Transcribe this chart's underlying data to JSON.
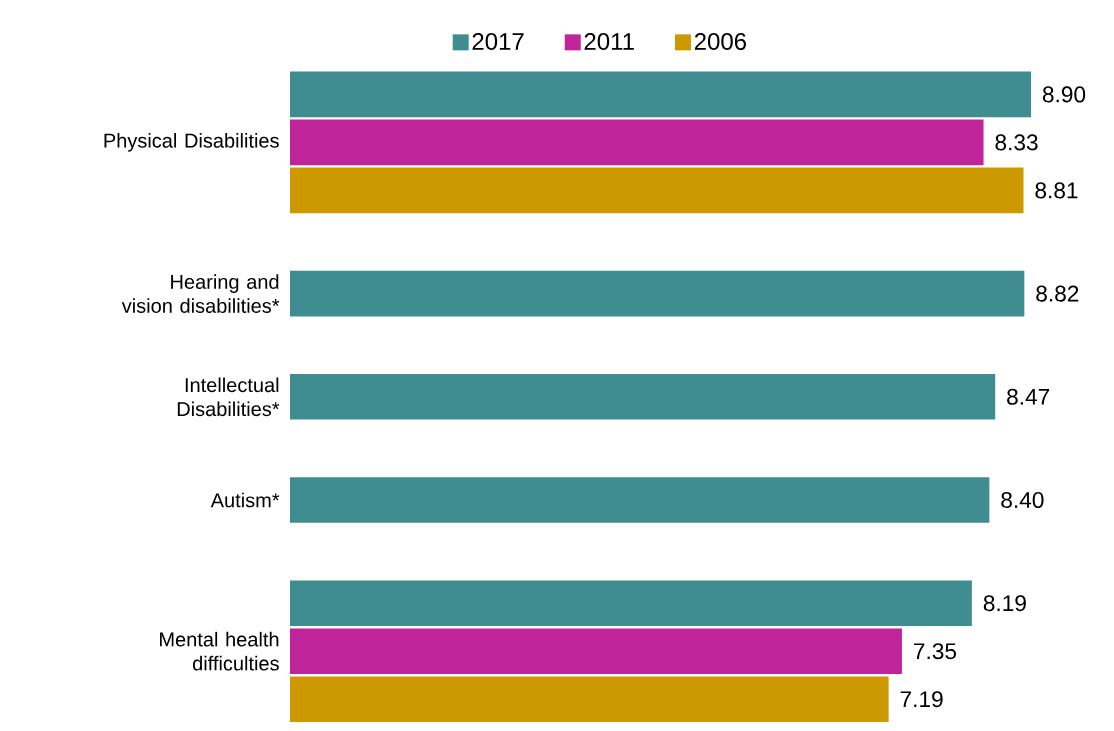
{
  "chart_data": {
    "type": "bar",
    "orientation": "horizontal",
    "categories": [
      "Physical Disabilities",
      "Hearing and vision disabilities*",
      "Intellectual Disabilities*",
      "Autism*",
      "Mental health difficulties"
    ],
    "series": [
      {
        "name": "2017",
        "color": "#3f8c91",
        "values": [
          8.9,
          8.82,
          8.47,
          8.4,
          8.19
        ],
        "value_labels": [
          "8.90",
          "8.82",
          "8.47",
          "8.40",
          "8.19"
        ]
      },
      {
        "name": "2011",
        "color": "#c0249a",
        "values": [
          8.33,
          null,
          null,
          null,
          7.35
        ],
        "value_labels": [
          "8.33",
          null,
          null,
          null,
          "7.35"
        ]
      },
      {
        "name": "2006",
        "color": "#cc9900",
        "values": [
          8.81,
          null,
          null,
          null,
          7.19
        ],
        "value_labels": [
          "8.81",
          null,
          null,
          null,
          "7.19"
        ]
      }
    ],
    "tick_labels": "y",
    "legend": "top"
  }
}
